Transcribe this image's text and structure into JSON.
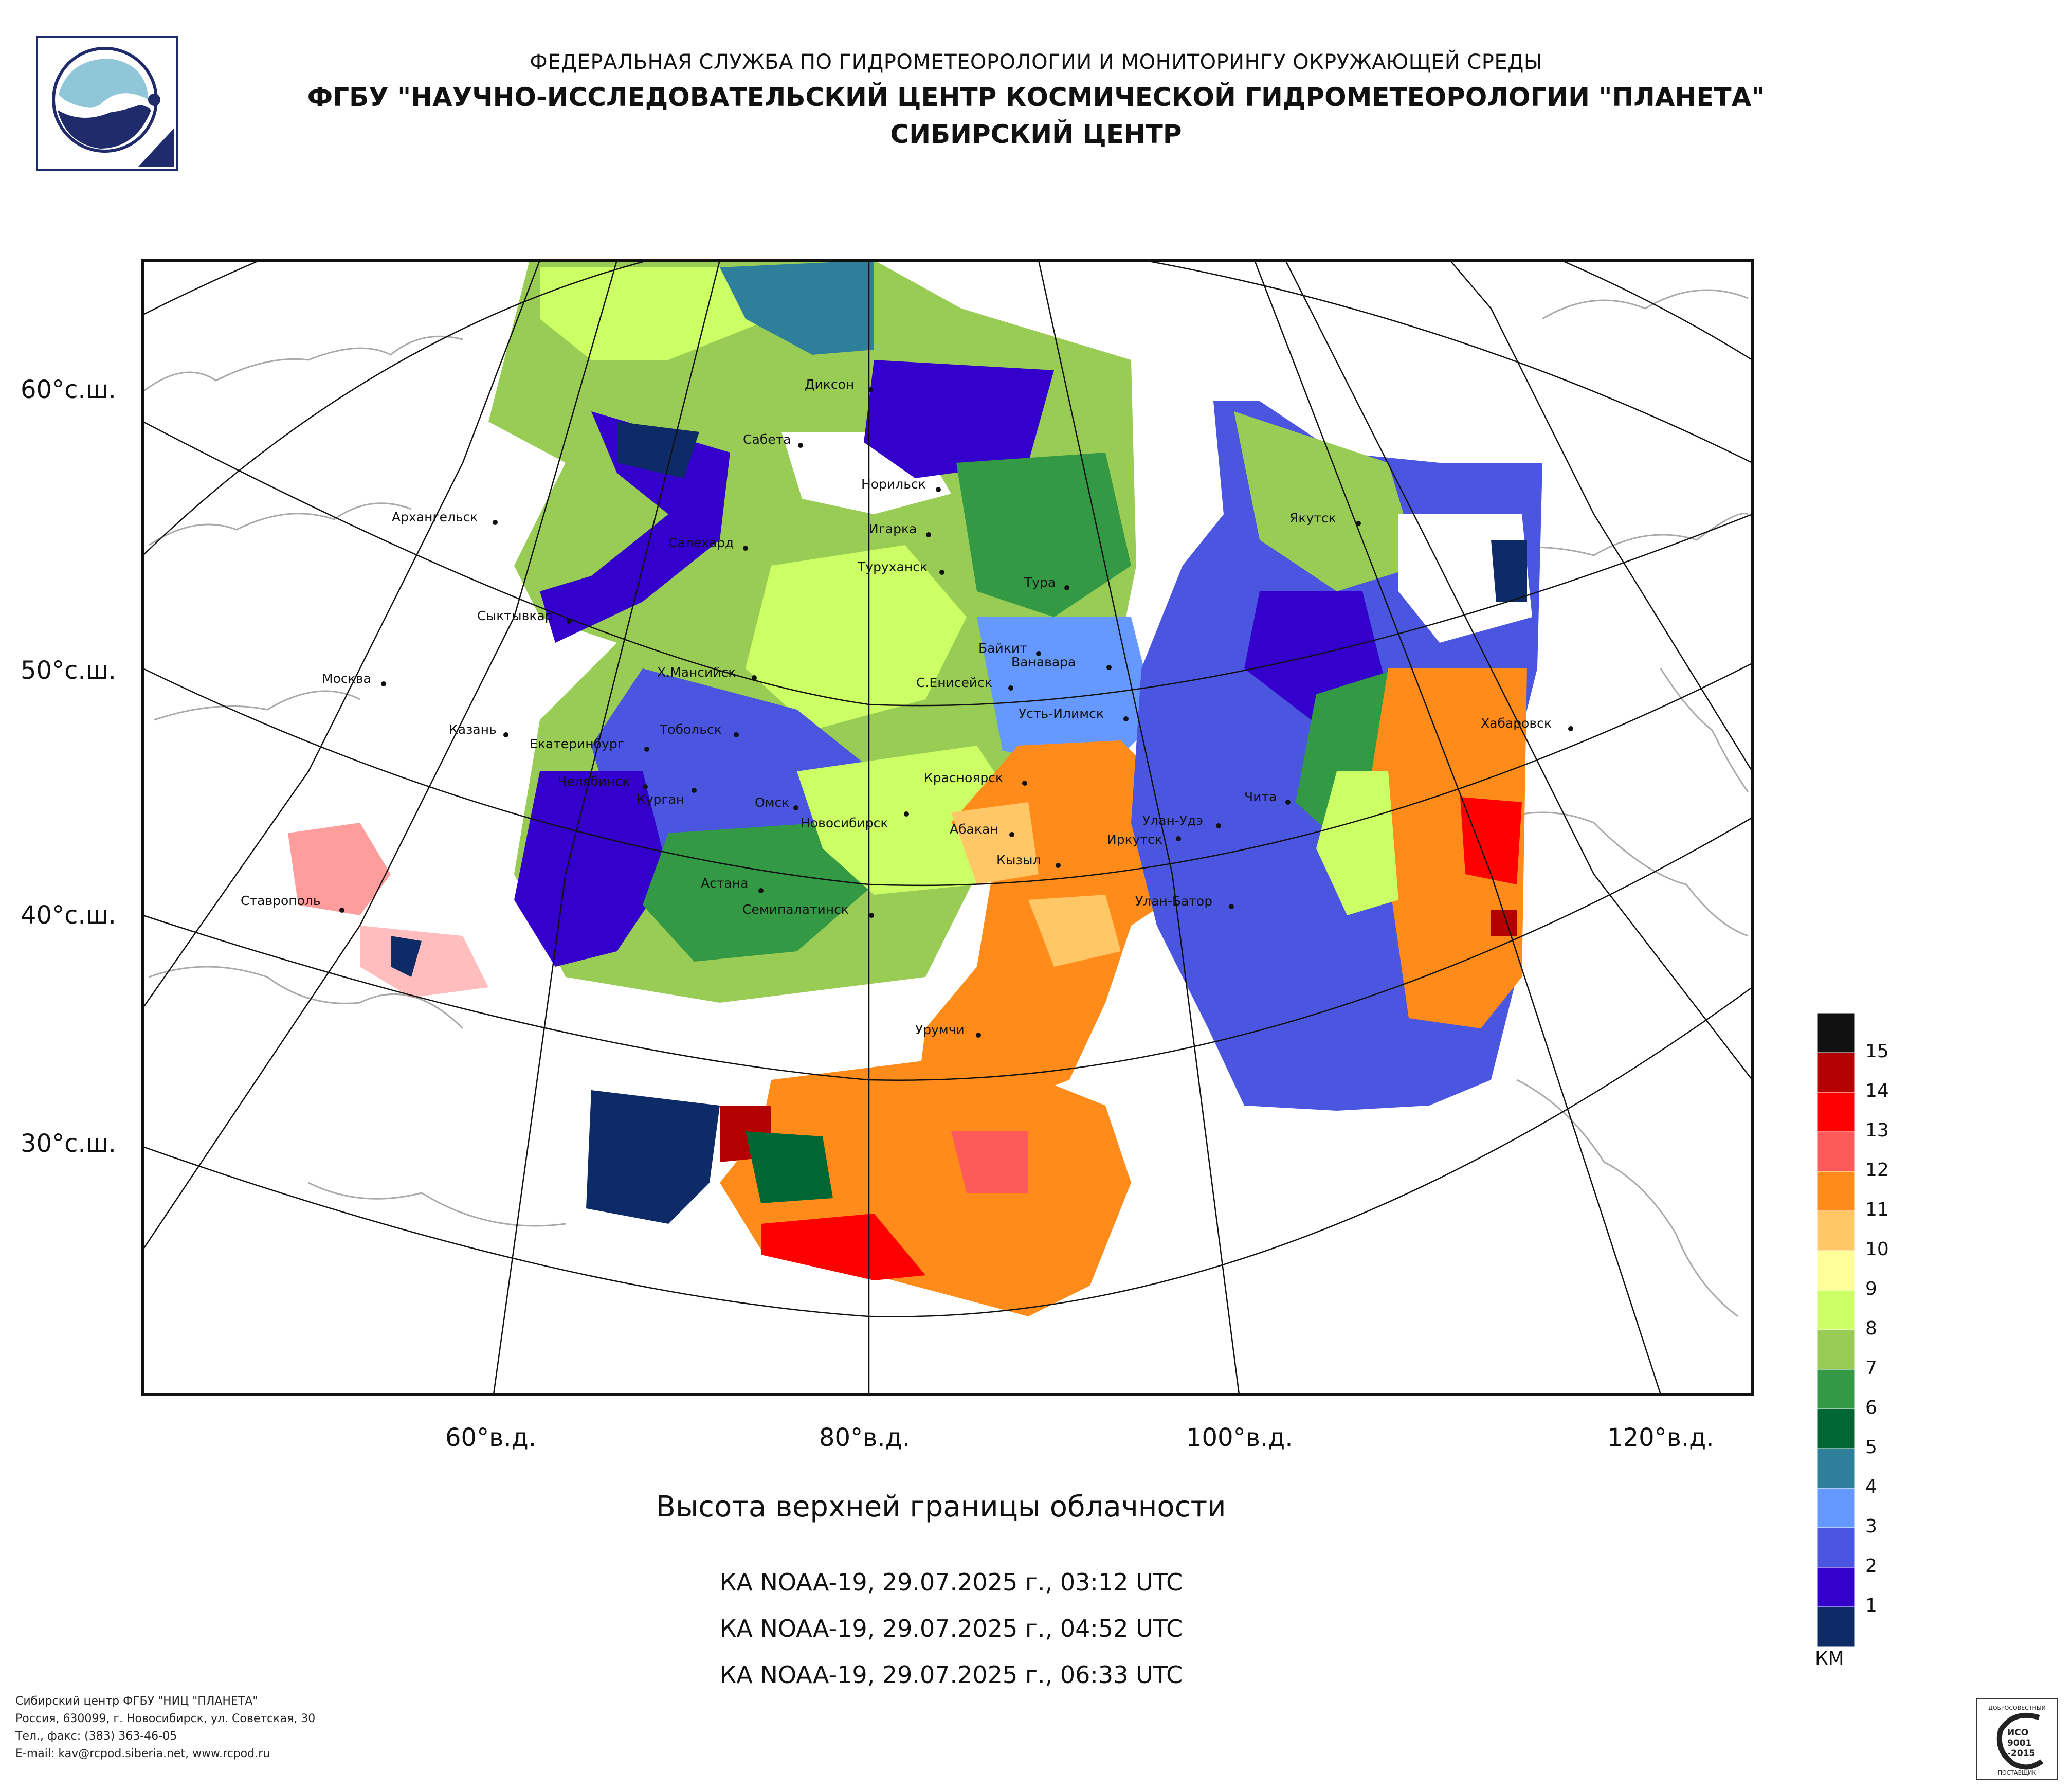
{
  "header": {
    "line1": "ФЕДЕРАЛЬНАЯ СЛУЖБА ПО ГИДРОМЕТЕОРОЛОГИИ И МОНИТОРИНГУ ОКРУЖАЮЩЕЙ СРЕДЫ",
    "line2": "ФГБУ \"НАУЧНО-ИССЛЕДОВАТЕЛЬСКИЙ ЦЕНТР КОСМИЧЕСКОЙ ГИДРОМЕТЕОРОЛОГИИ \"ПЛАНЕТА\"",
    "line3": "СИБИРСКИЙ ЦЕНТР"
  },
  "map": {
    "lat_labels": [
      "60°с.ш.",
      "50°с.ш.",
      "40°с.ш.",
      "30°с.ш."
    ],
    "lon_labels": [
      "60°в.д.",
      "80°в.д.",
      "100°в.д.",
      "120°в.д."
    ],
    "cities": [
      {
        "name": "Диксон",
        "dot": "right"
      },
      {
        "name": "Сабета",
        "dot": "right"
      },
      {
        "name": "Норильск",
        "dot": "right"
      },
      {
        "name": "Игарка",
        "dot": "right"
      },
      {
        "name": "Архангельск",
        "dot": "right"
      },
      {
        "name": "Салехард",
        "dot": "right"
      },
      {
        "name": "Туруханск",
        "dot": "right"
      },
      {
        "name": "Тура",
        "dot": "right"
      },
      {
        "name": "Якутск",
        "dot": "right"
      },
      {
        "name": "Сыктывкар",
        "dot": "right"
      },
      {
        "name": "Байкит",
        "dot": "right"
      },
      {
        "name": "Ванавара",
        "dot": "right"
      },
      {
        "name": "Москва",
        "dot": "right"
      },
      {
        "name": "Х.Мансийск",
        "dot": "right"
      },
      {
        "name": "С.Енисейск",
        "dot": "right"
      },
      {
        "name": "Усть-Илимск",
        "dot": "right"
      },
      {
        "name": "Хабаровск",
        "dot": "right"
      },
      {
        "name": "Казань",
        "dot": "right"
      },
      {
        "name": "Тобольск",
        "dot": "right"
      },
      {
        "name": "Екатеринбург",
        "dot": "right"
      },
      {
        "name": "Челябинск",
        "dot": "right"
      },
      {
        "name": "Курган",
        "dot": "right"
      },
      {
        "name": "Красноярск",
        "dot": "right"
      },
      {
        "name": "Омск",
        "dot": "right"
      },
      {
        "name": "Новосибирск",
        "dot": "right"
      },
      {
        "name": "Чита",
        "dot": "right"
      },
      {
        "name": "Абакан",
        "dot": "right"
      },
      {
        "name": "Улан-Удэ",
        "dot": "right"
      },
      {
        "name": "Иркутск",
        "dot": "right"
      },
      {
        "name": "Кызыл",
        "dot": "right"
      },
      {
        "name": "Астана",
        "dot": "right"
      },
      {
        "name": "Ставрополь",
        "dot": "right"
      },
      {
        "name": "Семипалатинск",
        "dot": "right"
      },
      {
        "name": "Улан-Батор",
        "dot": "right"
      },
      {
        "name": "Урумчи",
        "dot": "right"
      }
    ]
  },
  "legend": {
    "unit": "КМ",
    "items": [
      {
        "label": "",
        "color": "#111111"
      },
      {
        "label": "15",
        "color": "#b30000"
      },
      {
        "label": "14",
        "color": "#ff0000"
      },
      {
        "label": "13",
        "color": "#ff5a5a"
      },
      {
        "label": "12",
        "color": "#ff8c1a"
      },
      {
        "label": "11",
        "color": "#ffc766"
      },
      {
        "label": "10",
        "color": "#ffff99"
      },
      {
        "label": "9",
        "color": "#ccff66"
      },
      {
        "label": "8",
        "color": "#99cc55"
      },
      {
        "label": "7",
        "color": "#339944"
      },
      {
        "label": "6",
        "color": "#006633"
      },
      {
        "label": "5",
        "color": "#2e7f99"
      },
      {
        "label": "4",
        "color": "#6699ff"
      },
      {
        "label": "3",
        "color": "#4a55e0"
      },
      {
        "label": "2",
        "color": "#3300cc"
      },
      {
        "label": "1",
        "color": "#0d2b66"
      }
    ]
  },
  "caption": {
    "title": "Высота верхней границы облачности",
    "passes": [
      "КА NOAA-19, 29.07.2025 г., 03:12 UTC",
      "КА NOAA-19, 29.07.2025 г., 04:52 UTC",
      "КА NOAA-19, 29.07.2025 г., 06:33 UTC"
    ]
  },
  "footer": {
    "lines": [
      "Сибирский центр ФГБУ \"НИЦ \"ПЛАНЕТА\"",
      "Россия, 630099, г. Новосибирск, ул. Советская, 30",
      "Тел., факс: (383) 363-46-05",
      "E-mail: kav@rcpod.siberia.net, www.rcpod.ru"
    ],
    "iso_top": "ДОБРОСОВЕСТНЫЙ",
    "iso_mid1": "ИСО",
    "iso_mid2": "9001",
    "iso_mid3": "-2015",
    "iso_bottom": "ПОСТАВЩИК"
  }
}
